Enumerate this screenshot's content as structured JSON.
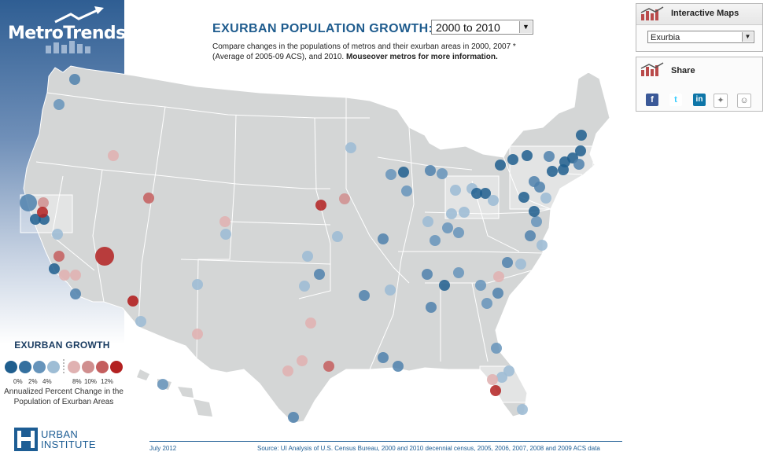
{
  "brand": {
    "name": "MetroTrends"
  },
  "header": {
    "title": "EXURBAN POPULATION GROWTH:",
    "year_select": "2000 to 2010",
    "description_plain": "Compare changes in the populations of metros and their exurban areas in 2000, 2007 * (Average of 2005-09 ACS), and 2010.",
    "description_bold": "Mouseover metros for more information."
  },
  "legend": {
    "title": "EXURBAN GROWTH",
    "tick_labels": [
      "0%",
      "2%",
      "4%",
      "8%",
      "10%",
      "12%"
    ],
    "description": "Annualized Percent Change in the Population of Exurban Areas"
  },
  "interactive_maps": {
    "label": "Interactive Maps",
    "selected": "Exurbia"
  },
  "share": {
    "label": "Share"
  },
  "footer": {
    "date": "July 2012",
    "source": "Source: UI Analysis of U.S. Census Bureau, 2000 and 2010 decennial census, 2005, 2006, 2007, 2008 and 2009 ACS data"
  },
  "org": {
    "line1": "URBAN",
    "line2": "INSTITUTE"
  },
  "colors": {
    "blue_dark": "#1f5e8e",
    "blue_mid": "#4f81ad",
    "blue_light": "#8eb0cc",
    "red_light": "#d59a9a",
    "red_mid": "#c56d6d",
    "red_dark": "#b22828",
    "map_fill": "#d4d6d6",
    "title_blue": "#1f5c8e"
  }
}
